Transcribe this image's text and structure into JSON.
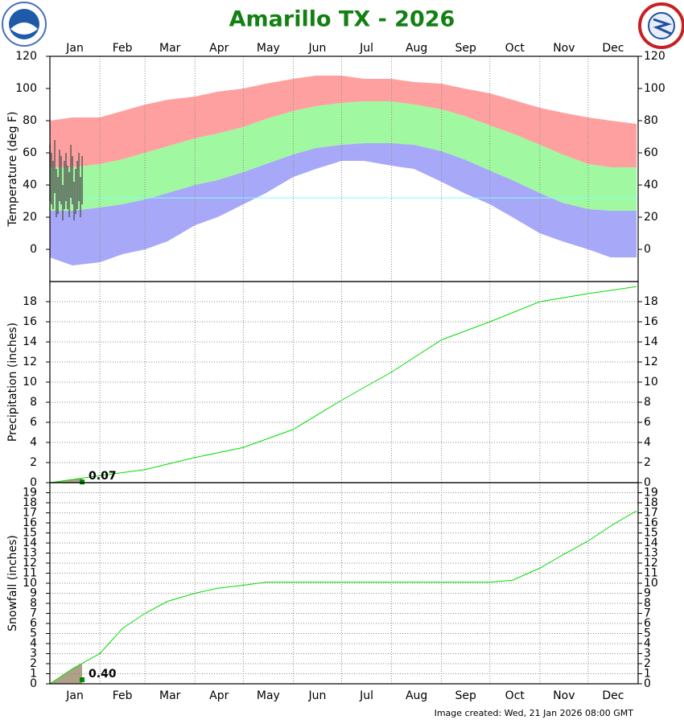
{
  "chart_data": [
    {
      "type": "climate",
      "title": "Amarillo TX - 2026",
      "ylabel": "Temperature (deg F)",
      "categories": [
        "Jan",
        "Feb",
        "Mar",
        "Apr",
        "May",
        "Jun",
        "Jul",
        "Aug",
        "Sep",
        "Oct",
        "Nov",
        "Dec"
      ],
      "xlim": [
        1,
        366
      ],
      "xticks": [
        1,
        32,
        60,
        91,
        121,
        152,
        182,
        213,
        244,
        274,
        305,
        335
      ],
      "ylim": [
        -20,
        120
      ],
      "yticks": [
        0,
        20,
        40,
        60,
        80,
        100,
        120
      ],
      "grid": "x",
      "x": [
        1,
        15,
        32,
        46,
        60,
        74,
        91,
        105,
        121,
        135,
        152,
        166,
        182,
        196,
        213,
        227,
        244,
        258,
        274,
        288,
        305,
        319,
        335,
        349,
        365
      ],
      "record_high": [
        80,
        82,
        82,
        86,
        90,
        93,
        95,
        98,
        100,
        103,
        106,
        108,
        108,
        106,
        106,
        104,
        103,
        100,
        97,
        93,
        88,
        85,
        82,
        80,
        78
      ],
      "normal_high": [
        51,
        51,
        53,
        56,
        60,
        64,
        69,
        72,
        76,
        81,
        86,
        89,
        91,
        92,
        92,
        90,
        87,
        83,
        77,
        72,
        65,
        59,
        53,
        51,
        51
      ],
      "normal_low": [
        24,
        24,
        26,
        28,
        31,
        35,
        40,
        43,
        48,
        53,
        59,
        63,
        65,
        66,
        66,
        65,
        61,
        56,
        49,
        43,
        35,
        29,
        25,
        24,
        24
      ],
      "record_low": [
        -5,
        -10,
        -8,
        -3,
        0,
        5,
        15,
        20,
        28,
        35,
        45,
        50,
        55,
        55,
        52,
        50,
        42,
        35,
        28,
        20,
        10,
        5,
        0,
        -5,
        -5
      ],
      "record_high_color": "#ffa0a0",
      "normal_color": "#a0f8a0",
      "record_low_color": "#a8a8f8",
      "reference_line": 32,
      "reference_color": "#80ffff",
      "obs_x": [
        1,
        2,
        3,
        4,
        5,
        6,
        7,
        8,
        9,
        10,
        11,
        12,
        13,
        14,
        15,
        16,
        17,
        18,
        19,
        20,
        21
      ],
      "obs_high": [
        65,
        60,
        55,
        68,
        50,
        45,
        62,
        58,
        40,
        55,
        60,
        52,
        48,
        65,
        58,
        42,
        50,
        55,
        60,
        45,
        58
      ],
      "obs_low": [
        30,
        28,
        25,
        35,
        20,
        22,
        30,
        28,
        18,
        25,
        30,
        25,
        20,
        32,
        28,
        18,
        22,
        25,
        30,
        20,
        28
      ],
      "obs_color": "#555555"
    },
    {
      "type": "cumulative",
      "ylabel": "Precipitation (inches)",
      "ylim": [
        0,
        20
      ],
      "yticks": [
        0,
        2,
        4,
        6,
        8,
        10,
        12,
        14,
        16,
        18
      ],
      "grid": "both",
      "x": [
        1,
        32,
        60,
        91,
        121,
        152,
        182,
        213,
        244,
        274,
        305,
        335,
        365
      ],
      "normal": [
        0,
        0.7,
        1.3,
        2.5,
        3.5,
        5.3,
        8.2,
        11.0,
        14.2,
        16.0,
        18.0,
        18.8,
        19.5
      ],
      "color": "#00dd00",
      "observed_day": 21,
      "observed": 0.07,
      "value_label": "0.07"
    },
    {
      "type": "cumulative",
      "ylabel": "Snowfall (inches)",
      "ylim": [
        0,
        20
      ],
      "yticks": [
        0,
        1,
        2,
        3,
        4,
        5,
        6,
        7,
        8,
        9,
        10,
        11,
        12,
        13,
        14,
        15,
        16,
        17,
        18,
        19
      ],
      "grid": "both",
      "x": [
        1,
        15,
        32,
        46,
        60,
        74,
        91,
        105,
        121,
        135,
        152,
        274,
        288,
        305,
        319,
        335,
        349,
        365
      ],
      "normal": [
        0,
        1.5,
        3.0,
        5.5,
        7.0,
        8.2,
        9.0,
        9.5,
        9.8,
        10.1,
        10.1,
        10.1,
        10.3,
        11.5,
        12.8,
        14.2,
        15.7,
        17.2
      ],
      "color": "#00dd00",
      "observed_day": 21,
      "observed": 0.4,
      "value_label": "0.40",
      "note": "Image created: Wed, 21 Jan 2026 08:00 GMT"
    }
  ]
}
